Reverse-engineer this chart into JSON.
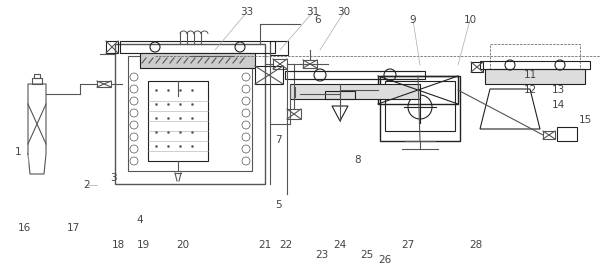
{
  "bg_color": "#ffffff",
  "line_color": "#555555",
  "dark_line": "#222222",
  "label_color": "#444444",
  "label_fontsize": 7.5,
  "fig_width": 6.1,
  "fig_height": 2.69,
  "dpi": 100
}
